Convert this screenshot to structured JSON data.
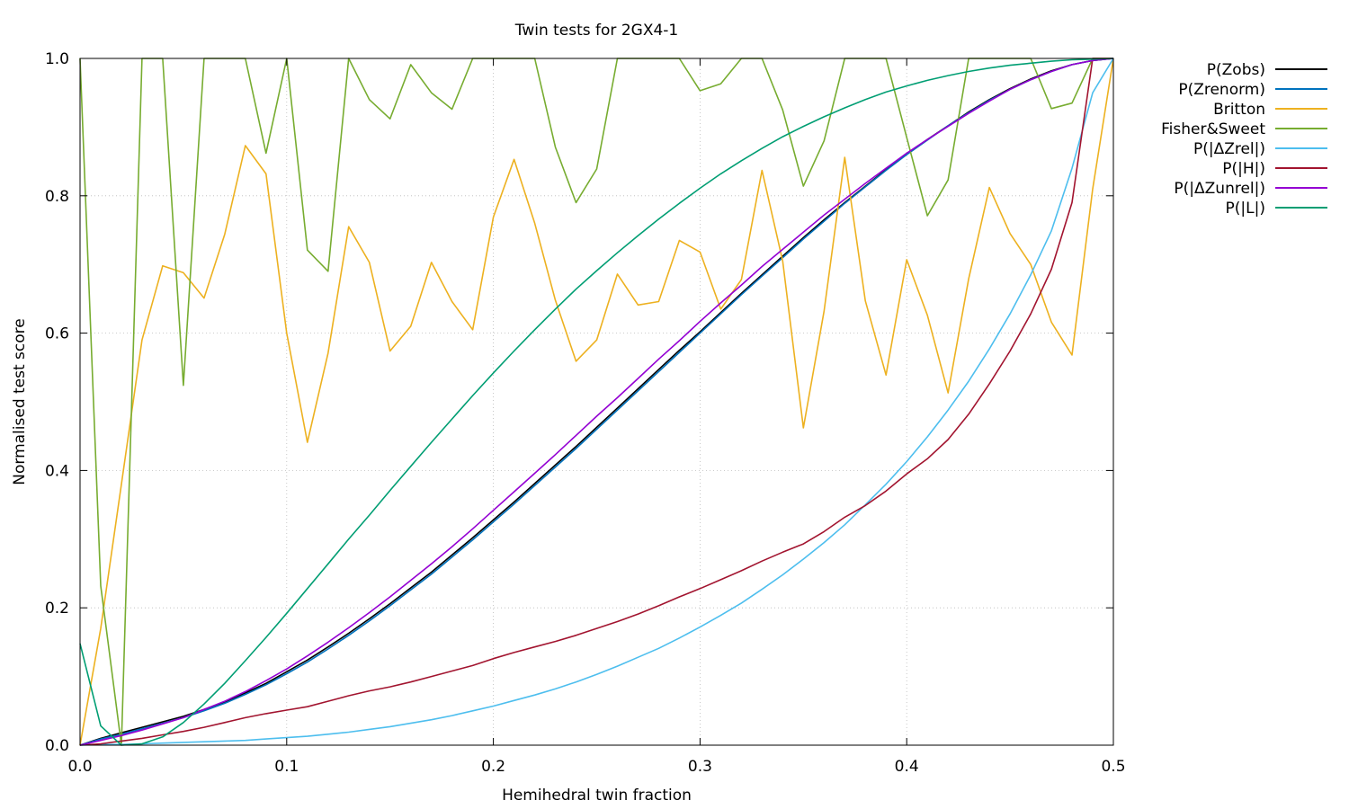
{
  "chart_data": {
    "type": "line",
    "title": "Twin tests for 2GX4-1",
    "xlabel": "Hemihedral twin fraction",
    "ylabel": "Normalised test score",
    "xlim": [
      0.0,
      0.5
    ],
    "ylim": [
      0.0,
      1.0
    ],
    "xticks": [
      "0.0",
      "0.1",
      "0.2",
      "0.3",
      "0.4",
      "0.5"
    ],
    "yticks": [
      "0.0",
      "0.2",
      "0.4",
      "0.6",
      "0.8",
      "1.0"
    ],
    "grid": true,
    "legend_position": "outside-top-right",
    "x": [
      0.0,
      0.01,
      0.02,
      0.03,
      0.04,
      0.05,
      0.06,
      0.07,
      0.08,
      0.09,
      0.1,
      0.11,
      0.12,
      0.13,
      0.14,
      0.15,
      0.16,
      0.17,
      0.18,
      0.19,
      0.2,
      0.21,
      0.22,
      0.23,
      0.24,
      0.25,
      0.26,
      0.27,
      0.28,
      0.29,
      0.3,
      0.31,
      0.32,
      0.33,
      0.34,
      0.35,
      0.36,
      0.37,
      0.38,
      0.39,
      0.4,
      0.41,
      0.42,
      0.43,
      0.44,
      0.45,
      0.46,
      0.47,
      0.48,
      0.49,
      0.5
    ],
    "series": [
      {
        "name": "P(Zobs)",
        "color": "#000000",
        "values": [
          0.0,
          0.01,
          0.018,
          0.026,
          0.034,
          0.042,
          0.052,
          0.063,
          0.076,
          0.09,
          0.107,
          0.124,
          0.143,
          0.163,
          0.184,
          0.206,
          0.229,
          0.252,
          0.277,
          0.302,
          0.328,
          0.354,
          0.381,
          0.408,
          0.435,
          0.463,
          0.491,
          0.519,
          0.547,
          0.575,
          0.602,
          0.63,
          0.658,
          0.685,
          0.712,
          0.739,
          0.765,
          0.79,
          0.814,
          0.838,
          0.861,
          0.882,
          0.902,
          0.922,
          0.94,
          0.956,
          0.97,
          0.982,
          0.991,
          0.997,
          1.0
        ]
      },
      {
        "name": "P(Zrenorm)",
        "color": "#0072bd",
        "values": [
          0.0,
          0.009,
          0.016,
          0.024,
          0.032,
          0.04,
          0.05,
          0.061,
          0.074,
          0.088,
          0.104,
          0.121,
          0.14,
          0.16,
          0.181,
          0.203,
          0.226,
          0.249,
          0.274,
          0.299,
          0.325,
          0.351,
          0.378,
          0.405,
          0.432,
          0.46,
          0.488,
          0.516,
          0.544,
          0.572,
          0.6,
          0.628,
          0.656,
          0.683,
          0.71,
          0.737,
          0.763,
          0.789,
          0.813,
          0.837,
          0.86,
          0.881,
          0.902,
          0.921,
          0.939,
          0.955,
          0.969,
          0.981,
          0.991,
          0.997,
          1.0
        ]
      },
      {
        "name": "Britton",
        "color": "#edb120",
        "values": [
          0.0,
          0.17,
          0.38,
          0.59,
          0.698,
          0.688,
          0.651,
          0.744,
          0.873,
          0.832,
          0.6,
          0.441,
          0.571,
          0.755,
          0.703,
          0.574,
          0.61,
          0.703,
          0.646,
          0.605,
          0.769,
          0.853,
          0.76,
          0.648,
          0.559,
          0.59,
          0.686,
          0.641,
          0.646,
          0.735,
          0.718,
          0.635,
          0.678,
          0.837,
          0.705,
          0.462,
          0.632,
          0.856,
          0.647,
          0.539,
          0.707,
          0.626,
          0.513,
          0.679,
          0.812,
          0.745,
          0.7,
          0.616,
          0.568,
          0.81,
          1.0
        ]
      },
      {
        "name": "Fisher&Sweet",
        "color": "#77ac30",
        "values": [
          1.0,
          0.232,
          0.0,
          1.0,
          1.0,
          0.524,
          1.0,
          1.0,
          1.0,
          0.862,
          1.0,
          0.721,
          0.69,
          1.0,
          0.94,
          0.912,
          0.991,
          0.95,
          0.926,
          1.0,
          1.0,
          1.0,
          1.0,
          0.871,
          0.79,
          0.839,
          1.0,
          1.0,
          1.0,
          1.0,
          0.953,
          0.963,
          1.0,
          1.0,
          0.925,
          0.814,
          0.88,
          1.0,
          1.0,
          1.0,
          0.885,
          0.771,
          0.823,
          1.0,
          1.0,
          1.0,
          1.0,
          0.927,
          0.935,
          1.0,
          1.0
        ]
      },
      {
        "name": "P(|ΔZrel|)",
        "color": "#4dbeee",
        "values": [
          0.0,
          0.001,
          0.001,
          0.002,
          0.003,
          0.004,
          0.005,
          0.006,
          0.007,
          0.009,
          0.011,
          0.013,
          0.016,
          0.019,
          0.023,
          0.027,
          0.032,
          0.037,
          0.043,
          0.05,
          0.057,
          0.065,
          0.073,
          0.082,
          0.092,
          0.103,
          0.115,
          0.128,
          0.141,
          0.156,
          0.172,
          0.189,
          0.207,
          0.227,
          0.248,
          0.271,
          0.295,
          0.321,
          0.35,
          0.38,
          0.413,
          0.449,
          0.488,
          0.53,
          0.577,
          0.628,
          0.685,
          0.749,
          0.84,
          0.95,
          1.0
        ]
      },
      {
        "name": "P(|H|)",
        "color": "#a2142f",
        "values": [
          0.0,
          0.002,
          0.006,
          0.01,
          0.015,
          0.02,
          0.026,
          0.033,
          0.04,
          0.046,
          0.051,
          0.056,
          0.064,
          0.072,
          0.079,
          0.085,
          0.092,
          0.1,
          0.108,
          0.116,
          0.126,
          0.135,
          0.143,
          0.151,
          0.16,
          0.17,
          0.18,
          0.191,
          0.203,
          0.216,
          0.228,
          0.241,
          0.254,
          0.268,
          0.281,
          0.293,
          0.311,
          0.332,
          0.349,
          0.37,
          0.395,
          0.417,
          0.445,
          0.482,
          0.526,
          0.574,
          0.628,
          0.693,
          0.79,
          1.0,
          1.0
        ]
      },
      {
        "name": "P(|ΔZunrel|)",
        "color": "#9400d3",
        "values": [
          0.0,
          0.007,
          0.014,
          0.022,
          0.031,
          0.04,
          0.052,
          0.064,
          0.078,
          0.094,
          0.111,
          0.13,
          0.15,
          0.171,
          0.193,
          0.216,
          0.24,
          0.264,
          0.289,
          0.315,
          0.342,
          0.369,
          0.396,
          0.423,
          0.451,
          0.479,
          0.506,
          0.534,
          0.562,
          0.589,
          0.617,
          0.644,
          0.67,
          0.697,
          0.722,
          0.747,
          0.772,
          0.795,
          0.818,
          0.84,
          0.862,
          0.882,
          0.901,
          0.92,
          0.938,
          0.955,
          0.969,
          0.981,
          0.991,
          0.997,
          1.0
        ]
      },
      {
        "name": "P(|L|)",
        "color": "#009e73",
        "values": [
          0.148,
          0.028,
          0.0,
          0.002,
          0.012,
          0.033,
          0.06,
          0.09,
          0.123,
          0.157,
          0.192,
          0.228,
          0.264,
          0.3,
          0.335,
          0.371,
          0.406,
          0.441,
          0.475,
          0.509,
          0.542,
          0.574,
          0.605,
          0.635,
          0.664,
          0.691,
          0.717,
          0.742,
          0.766,
          0.789,
          0.811,
          0.832,
          0.851,
          0.869,
          0.886,
          0.901,
          0.915,
          0.928,
          0.94,
          0.951,
          0.96,
          0.968,
          0.975,
          0.981,
          0.986,
          0.99,
          0.993,
          0.996,
          0.998,
          0.999,
          1.0
        ]
      }
    ]
  }
}
